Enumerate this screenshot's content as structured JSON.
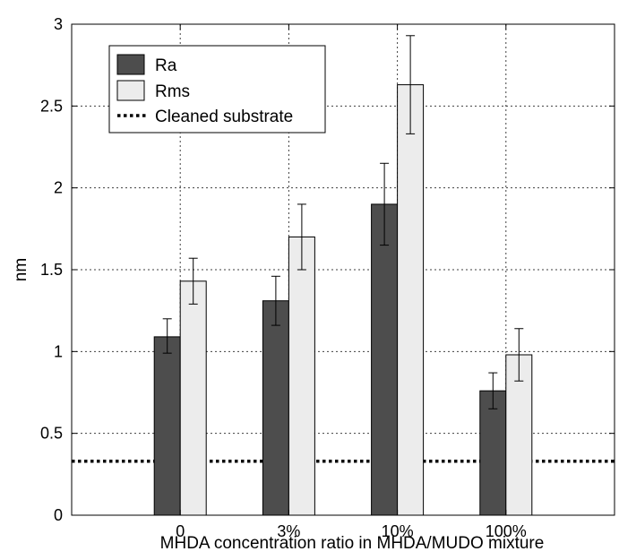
{
  "chart_data": {
    "type": "bar",
    "title": "",
    "xlabel": "MHDA concentration ratio in MHDA/MUDO mixture",
    "ylabel": "nm",
    "categories": [
      "0",
      "3%",
      "10%",
      "100%"
    ],
    "ylim": [
      0,
      3
    ],
    "yticks": [
      "0",
      "0.5",
      "1",
      "1.5",
      "2",
      "2.5",
      "3"
    ],
    "grid": true,
    "legend_position": "top-left",
    "series": [
      {
        "name": "Ra",
        "color": "#4d4d4d",
        "values": [
          1.09,
          1.31,
          1.9,
          0.76
        ],
        "error_low": [
          0.99,
          1.16,
          1.65,
          0.65
        ],
        "error_high": [
          1.2,
          1.46,
          2.15,
          0.87
        ]
      },
      {
        "name": "Rms",
        "color": "#ececec",
        "values": [
          1.43,
          1.7,
          2.63,
          0.98
        ],
        "error_low": [
          1.29,
          1.5,
          2.33,
          0.82
        ],
        "error_high": [
          1.57,
          1.9,
          2.93,
          1.14
        ]
      }
    ],
    "reference_lines": [
      {
        "name": "Cleaned substrate",
        "value": 0.33,
        "style": "dotted",
        "color": "#000000"
      }
    ]
  }
}
